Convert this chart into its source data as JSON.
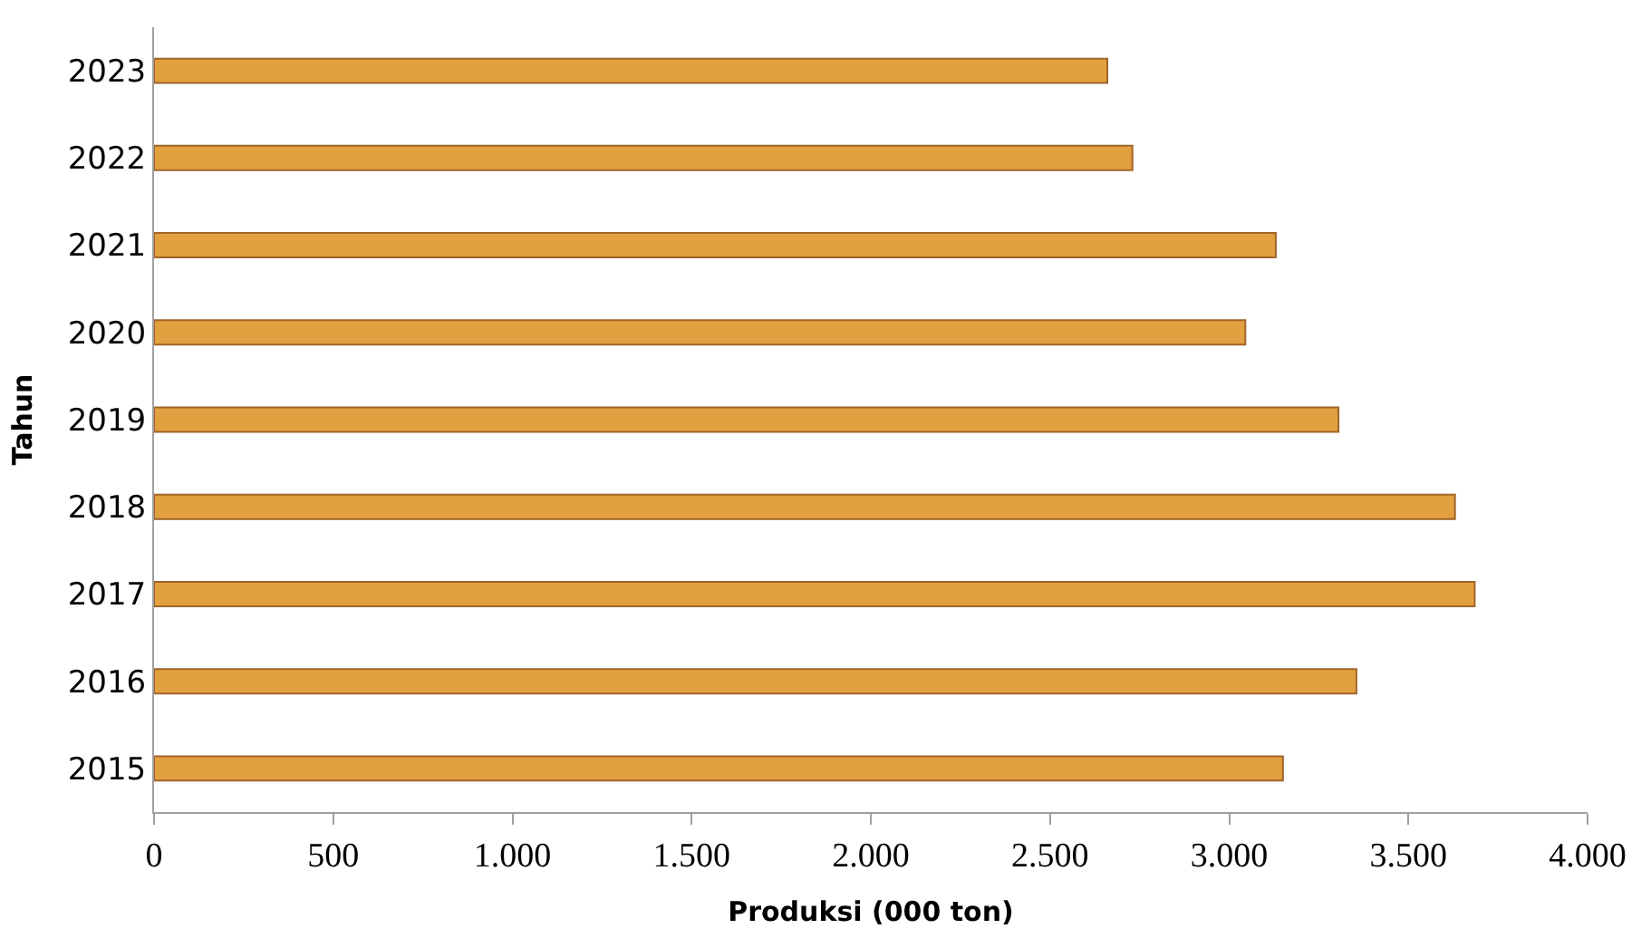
{
  "chart_data": {
    "type": "bar",
    "orientation": "horizontal",
    "xlabel": "Produksi (000 ton)",
    "ylabel": "Tahun",
    "categories": [
      "2023",
      "2022",
      "2021",
      "2020",
      "2019",
      "2018",
      "2017",
      "2016",
      "2015"
    ],
    "values": [
      2660,
      2730,
      3130,
      3045,
      3305,
      3630,
      3685,
      3355,
      3150
    ],
    "color": "#e3a040",
    "xlim": [
      0,
      4000
    ],
    "xticks": [
      0,
      {
        "value": 500,
        "label": "500"
      },
      {
        "value": 1000,
        "label": "1.000"
      },
      {
        "value": 1500,
        "label": "1.500"
      },
      {
        "value": 2000,
        "label": "2.000"
      },
      {
        "value": 2500,
        "label": "2.500"
      },
      {
        "value": 3000,
        "label": "3.000"
      },
      {
        "value": 3500,
        "label": "3.500"
      },
      {
        "value": 4000,
        "label": "4.000"
      }
    ],
    "legend": false
  }
}
